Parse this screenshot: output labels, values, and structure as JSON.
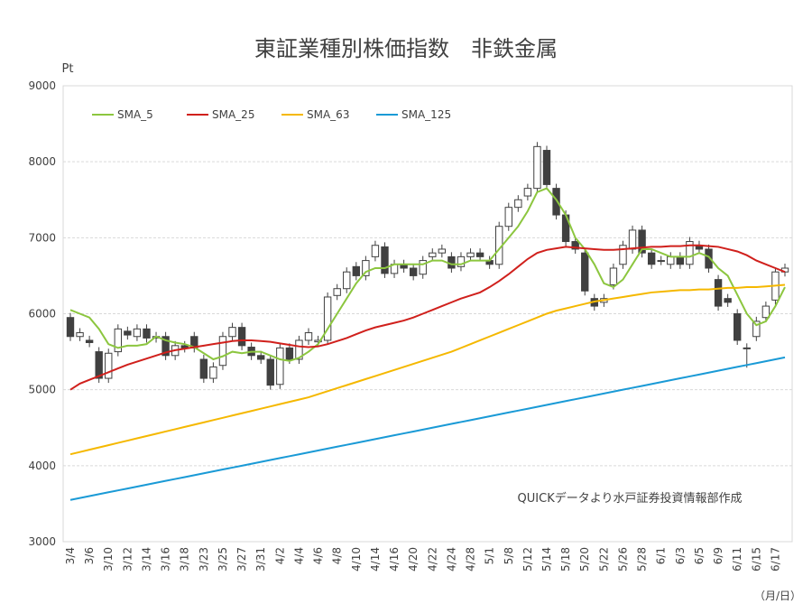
{
  "chart_data": {
    "type": "candlestick",
    "title": "東証業種別株価指数　非鉄金属",
    "y_unit": "Pt",
    "x_label": "（月/日）",
    "annotation": "QUICKデータより水戸証券投資情報部作成",
    "categories": [
      "3/4",
      null,
      "3/6",
      null,
      "3/10",
      null,
      "3/12",
      null,
      "3/14",
      null,
      "3/16",
      null,
      "3/18",
      null,
      "3/23",
      null,
      "3/25",
      null,
      "3/27",
      null,
      "3/31",
      null,
      "4/2",
      null,
      "4/4",
      null,
      "4/6",
      null,
      "4/8",
      null,
      "4/10",
      null,
      "4/14",
      null,
      "4/16",
      null,
      "4/20",
      null,
      "4/22",
      null,
      "4/24",
      null,
      "4/28",
      null,
      "5/1",
      null,
      "5/8",
      null,
      "5/12",
      null,
      "5/14",
      null,
      "5/18",
      null,
      "5/20",
      null,
      "5/22",
      null,
      "5/26",
      null,
      "5/28",
      null,
      "6/1",
      null,
      "6/3",
      null,
      "6/5",
      null,
      "6/9",
      null,
      "6/11",
      null,
      "6/15",
      null,
      "6/17",
      null
    ],
    "open": [
      5950,
      5700,
      5650,
      5500,
      5150,
      5500,
      5770,
      5700,
      5800,
      5680,
      5700,
      5450,
      5580,
      5700,
      5400,
      5150,
      5320,
      5700,
      5820,
      5560,
      5450,
      5400,
      5070,
      5550,
      5400,
      5650,
      5630,
      5650,
      6240,
      6330,
      6620,
      6500,
      6750,
      6880,
      6530,
      6650,
      6600,
      6520,
      6750,
      6800,
      6750,
      6620,
      6750,
      6800,
      6700,
      6650,
      7150,
      7400,
      7550,
      7650,
      8150,
      7650,
      7300,
      6950,
      6800,
      6200,
      6150,
      6380,
      6650,
      6850,
      7100,
      6800,
      6700,
      6650,
      6750,
      6650,
      6900,
      6850,
      6450,
      6200,
      6000,
      5550,
      5700,
      5950,
      6180,
      6550
    ],
    "high": [
      6010,
      5810,
      5710,
      5560,
      5540,
      5860,
      5830,
      5860,
      5860,
      5760,
      5760,
      5640,
      5640,
      5760,
      5460,
      5360,
      5760,
      5880,
      5880,
      5620,
      5510,
      5460,
      5610,
      5610,
      5710,
      5810,
      5710,
      6280,
      6390,
      6610,
      6680,
      6760,
      6960,
      6940,
      6710,
      6710,
      6660,
      6760,
      6860,
      6910,
      6810,
      6810,
      6860,
      6860,
      6760,
      7210,
      7460,
      7560,
      7710,
      8260,
      8210,
      7710,
      7360,
      7010,
      6860,
      6260,
      6260,
      6660,
      6960,
      7160,
      7160,
      6860,
      6760,
      6810,
      6810,
      7010,
      6960,
      6910,
      6510,
      6260,
      6060,
      5610,
      5960,
      6160,
      6610,
      6660
    ],
    "low": [
      5640,
      5640,
      5560,
      5090,
      5090,
      5440,
      5660,
      5640,
      5620,
      5620,
      5390,
      5390,
      5490,
      5490,
      5090,
      5090,
      5260,
      5640,
      5520,
      5390,
      5340,
      5000,
      5010,
      5340,
      5340,
      5590,
      5570,
      5590,
      6180,
      6270,
      6440,
      6440,
      6690,
      6470,
      6470,
      6540,
      6440,
      6460,
      6690,
      6740,
      6540,
      6560,
      6690,
      6690,
      6590,
      6590,
      7090,
      7340,
      7490,
      7590,
      7640,
      7240,
      6890,
      6790,
      6240,
      6040,
      6090,
      6320,
      6590,
      6790,
      6740,
      6590,
      6640,
      6590,
      6590,
      6590,
      6790,
      6540,
      6040,
      6090,
      5590,
      5290,
      5640,
      5890,
      6120,
      6490
    ],
    "close": [
      5700,
      5750,
      5620,
      5150,
      5480,
      5800,
      5720,
      5800,
      5680,
      5700,
      5450,
      5580,
      5550,
      5550,
      5150,
      5300,
      5700,
      5820,
      5580,
      5450,
      5400,
      5060,
      5550,
      5400,
      5650,
      5750,
      5650,
      6220,
      6330,
      6550,
      6500,
      6700,
      6900,
      6530,
      6650,
      6600,
      6500,
      6700,
      6800,
      6850,
      6600,
      6750,
      6800,
      6750,
      6650,
      7150,
      7400,
      7500,
      7650,
      8200,
      7700,
      7300,
      6950,
      6850,
      6300,
      6100,
      6200,
      6600,
      6900,
      7100,
      6800,
      6650,
      6700,
      6750,
      6650,
      6950,
      6850,
      6600,
      6100,
      6150,
      5650,
      5550,
      5900,
      6100,
      6550,
      6600
    ],
    "up_color": "#ffffff",
    "down_color": "#404040",
    "series": [
      {
        "name": "SMA_5",
        "color": "#8cc63f",
        "values": [
          6050,
          6000,
          5950,
          5800,
          5600,
          5550,
          5580,
          5580,
          5600,
          5700,
          5650,
          5620,
          5600,
          5560,
          5480,
          5400,
          5440,
          5500,
          5480,
          5500,
          5500,
          5450,
          5400,
          5380,
          5420,
          5500,
          5600,
          5800,
          6000,
          6200,
          6400,
          6550,
          6600,
          6600,
          6650,
          6650,
          6650,
          6650,
          6700,
          6700,
          6650,
          6650,
          6700,
          6700,
          6700,
          6850,
          7000,
          7150,
          7350,
          7600,
          7650,
          7500,
          7300,
          7000,
          6850,
          6650,
          6400,
          6350,
          6450,
          6650,
          6850,
          6850,
          6800,
          6750,
          6750,
          6750,
          6800,
          6750,
          6600,
          6500,
          6250,
          6000,
          5850,
          5900,
          6100,
          6350
        ]
      },
      {
        "name": "SMA_25",
        "color": "#d0201c",
        "values": [
          5000,
          5080,
          5130,
          5180,
          5230,
          5280,
          5330,
          5370,
          5410,
          5450,
          5490,
          5520,
          5540,
          5560,
          5580,
          5600,
          5620,
          5640,
          5650,
          5650,
          5640,
          5630,
          5610,
          5590,
          5570,
          5560,
          5570,
          5600,
          5640,
          5680,
          5730,
          5780,
          5820,
          5850,
          5880,
          5910,
          5950,
          6000,
          6050,
          6100,
          6150,
          6200,
          6240,
          6280,
          6350,
          6430,
          6520,
          6620,
          6720,
          6800,
          6840,
          6860,
          6880,
          6870,
          6860,
          6850,
          6840,
          6840,
          6850,
          6860,
          6870,
          6880,
          6880,
          6890,
          6890,
          6900,
          6900,
          6890,
          6880,
          6850,
          6820,
          6770,
          6700,
          6650,
          6600,
          6550
        ]
      },
      {
        "name": "SMA_63",
        "color": "#f5b800",
        "values": [
          4150,
          4180,
          4210,
          4240,
          4270,
          4300,
          4330,
          4360,
          4390,
          4420,
          4450,
          4480,
          4510,
          4540,
          4570,
          4600,
          4630,
          4660,
          4690,
          4720,
          4750,
          4780,
          4810,
          4840,
          4870,
          4900,
          4940,
          4980,
          5020,
          5060,
          5100,
          5140,
          5180,
          5220,
          5260,
          5300,
          5340,
          5380,
          5420,
          5460,
          5500,
          5550,
          5600,
          5650,
          5700,
          5750,
          5800,
          5850,
          5900,
          5950,
          6000,
          6040,
          6070,
          6100,
          6130,
          6160,
          6180,
          6200,
          6220,
          6240,
          6260,
          6280,
          6290,
          6300,
          6310,
          6310,
          6320,
          6320,
          6330,
          6340,
          6340,
          6350,
          6350,
          6360,
          6370,
          6380
        ]
      },
      {
        "name": "SMA_125",
        "color": "#1a9ad6",
        "values": [
          3550,
          3575,
          3600,
          3625,
          3650,
          3675,
          3700,
          3725,
          3750,
          3775,
          3800,
          3825,
          3850,
          3875,
          3900,
          3925,
          3950,
          3975,
          4000,
          4025,
          4050,
          4075,
          4100,
          4125,
          4150,
          4175,
          4200,
          4225,
          4250,
          4275,
          4300,
          4325,
          4350,
          4375,
          4400,
          4425,
          4450,
          4475,
          4500,
          4525,
          4550,
          4575,
          4600,
          4625,
          4650,
          4675,
          4700,
          4725,
          4750,
          4775,
          4800,
          4825,
          4850,
          4875,
          4900,
          4925,
          4950,
          4975,
          5000,
          5025,
          5050,
          5075,
          5100,
          5125,
          5150,
          5175,
          5200,
          5225,
          5250,
          5275,
          5300,
          5325,
          5350,
          5375,
          5400,
          5425
        ]
      }
    ],
    "ylim": [
      3000,
      9000
    ],
    "yticks": [
      3000,
      4000,
      5000,
      6000,
      7000,
      8000,
      9000
    ],
    "grid": true
  }
}
